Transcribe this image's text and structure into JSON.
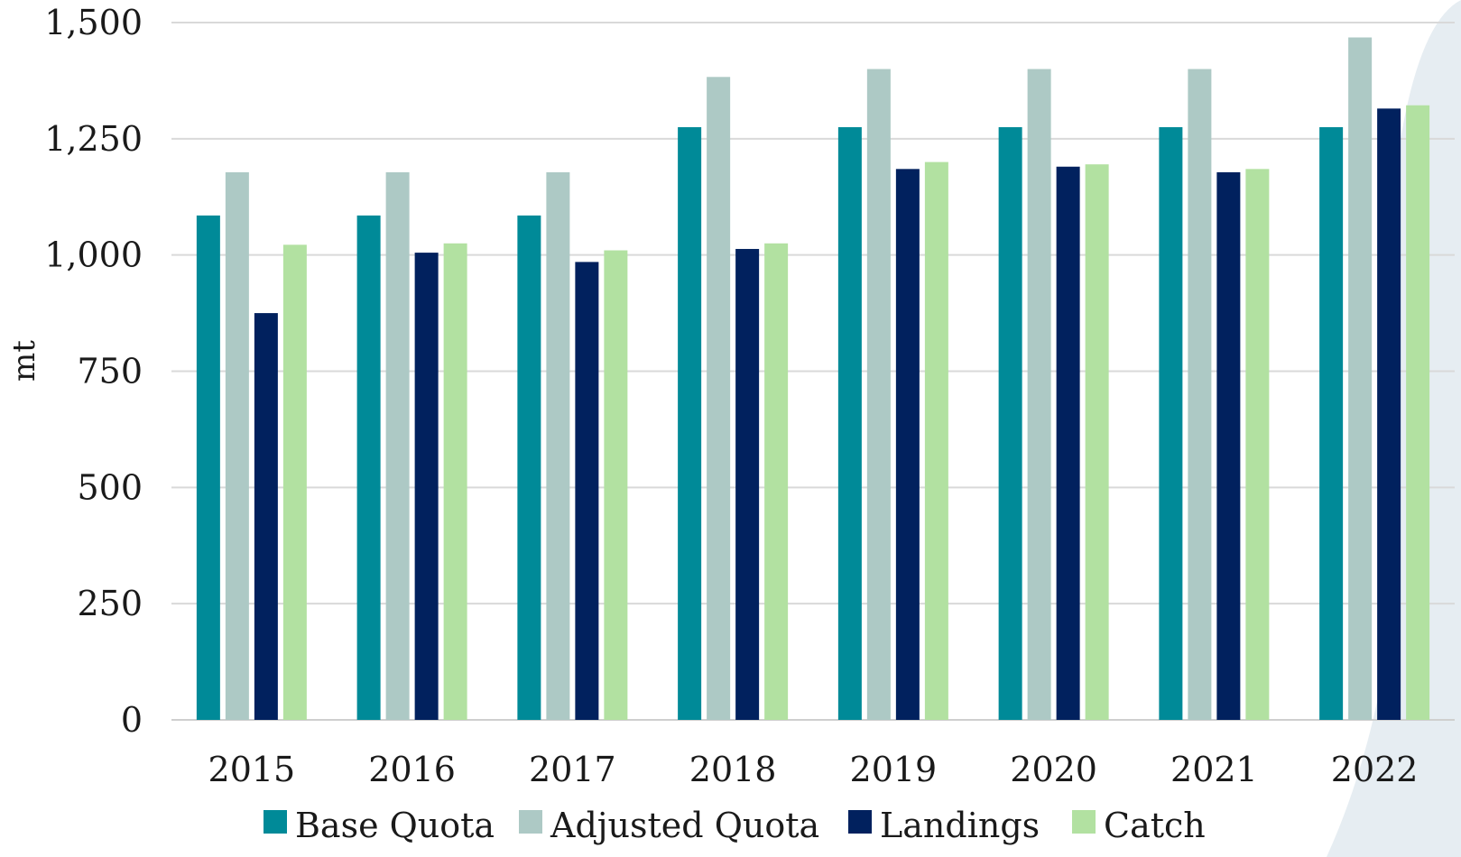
{
  "chart_data": {
    "type": "bar",
    "title": "",
    "xlabel": "",
    "ylabel": "mt",
    "ylim": [
      0,
      1500
    ],
    "yticks": [
      0,
      250,
      500,
      750,
      1000,
      1250,
      1500
    ],
    "ytick_labels": [
      "0",
      "250",
      "500",
      "750",
      "1,000",
      "1,250",
      "1,500"
    ],
    "categories": [
      "2015",
      "2016",
      "2017",
      "2018",
      "2019",
      "2020",
      "2021",
      "2022"
    ],
    "grid": true,
    "legend_position": "bottom",
    "series": [
      {
        "name": "Base Quota",
        "color": "#008a98",
        "values": [
          1085,
          1085,
          1085,
          1275,
          1275,
          1275,
          1275,
          1275
        ]
      },
      {
        "name": "Adjusted Quota",
        "color": "#adc9c5",
        "values": [
          1178,
          1178,
          1178,
          1383,
          1400,
          1400,
          1400,
          1468
        ]
      },
      {
        "name": "Landings",
        "color": "#01215e",
        "values": [
          875,
          1005,
          985,
          1013,
          1185,
          1190,
          1178,
          1315
        ]
      },
      {
        "name": "Catch",
        "color": "#b2e1a1",
        "values": [
          1022,
          1025,
          1010,
          1025,
          1200,
          1195,
          1185,
          1322
        ]
      }
    ],
    "background_swoosh_color": "#e6edf2"
  }
}
